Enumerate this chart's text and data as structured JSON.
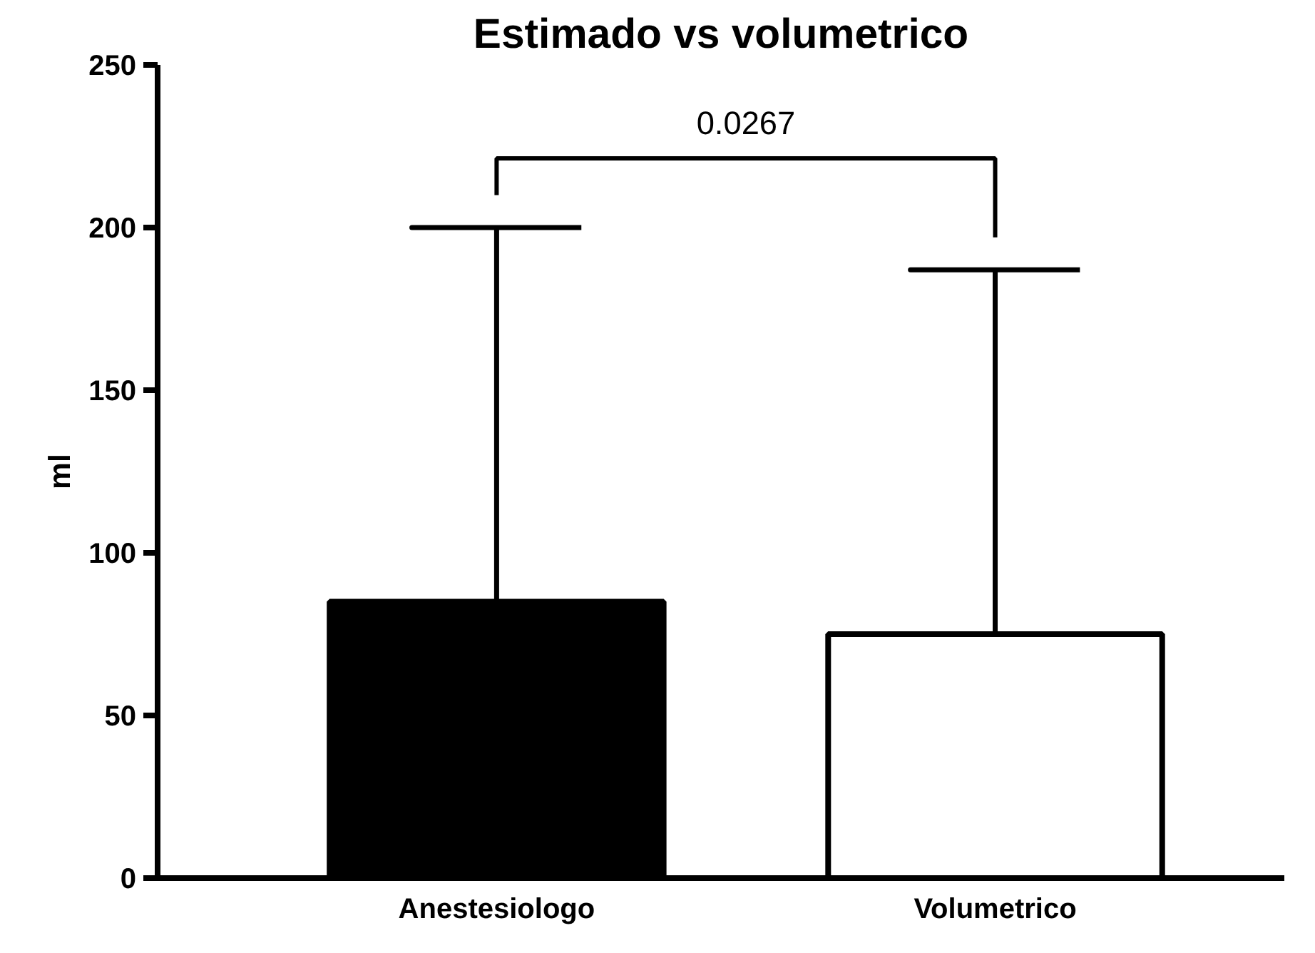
{
  "chart_data": {
    "type": "bar",
    "title": "Estimado vs volumetrico",
    "ylabel": "ml",
    "categories": [
      "Anestesiologo",
      "Volumetrico"
    ],
    "values": [
      85,
      75
    ],
    "colors": [
      "#000000",
      "#ffffff"
    ],
    "errors": [
      [
        85,
        200
      ],
      [
        75,
        187
      ]
    ],
    "ylim": [
      0,
      250
    ],
    "yticks": [
      0,
      50,
      100,
      150,
      200,
      250
    ],
    "annotations": [
      "0.0267"
    ],
    "grid": false
  }
}
